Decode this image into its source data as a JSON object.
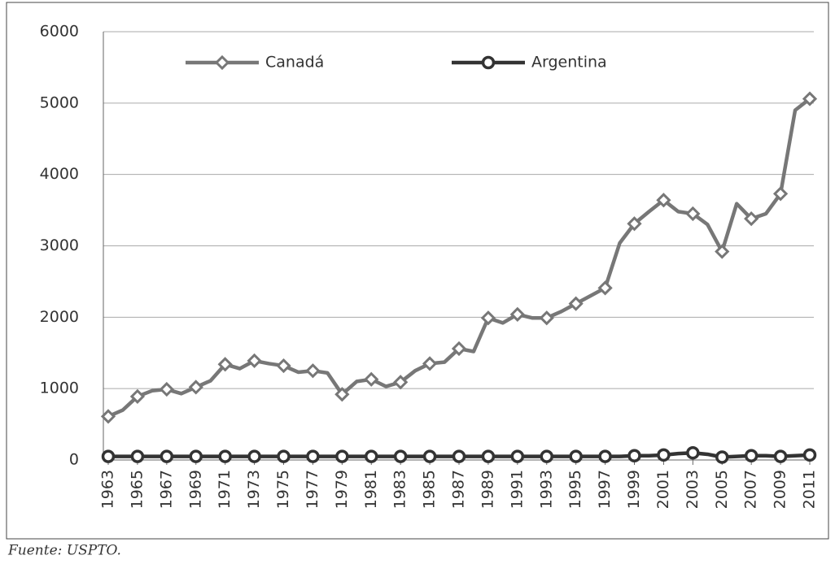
{
  "chart_data": {
    "type": "line",
    "x": [
      1963,
      1964,
      1965,
      1966,
      1967,
      1968,
      1969,
      1970,
      1971,
      1972,
      1973,
      1974,
      1975,
      1976,
      1977,
      1978,
      1979,
      1980,
      1981,
      1982,
      1983,
      1984,
      1985,
      1986,
      1987,
      1988,
      1989,
      1990,
      1991,
      1992,
      1993,
      1994,
      1995,
      1996,
      1997,
      1998,
      1999,
      2000,
      2001,
      2002,
      2003,
      2004,
      2005,
      2006,
      2007,
      2008,
      2009,
      2010,
      2011
    ],
    "series": [
      {
        "name": "Canadá",
        "color": "#777777",
        "marker": "diamond",
        "values": [
          610,
          700,
          890,
          970,
          990,
          930,
          1020,
          1110,
          1340,
          1280,
          1390,
          1350,
          1320,
          1230,
          1250,
          1220,
          920,
          1100,
          1130,
          1030,
          1090,
          1250,
          1350,
          1370,
          1560,
          1520,
          1990,
          1920,
          2040,
          1990,
          1990,
          2080,
          2190,
          2300,
          2410,
          3040,
          3310,
          3480,
          3640,
          3480,
          3450,
          3300,
          2920,
          3590,
          3380,
          3450,
          3730,
          4900,
          5060
        ]
      },
      {
        "name": "Argentina",
        "color": "#333333",
        "marker": "circle",
        "values": [
          50,
          50,
          50,
          50,
          50,
          50,
          50,
          50,
          50,
          50,
          50,
          50,
          50,
          50,
          50,
          50,
          50,
          50,
          50,
          50,
          50,
          50,
          50,
          50,
          50,
          50,
          50,
          50,
          50,
          50,
          50,
          50,
          50,
          50,
          50,
          50,
          60,
          60,
          70,
          90,
          100,
          80,
          40,
          50,
          60,
          60,
          50,
          60,
          70
        ]
      }
    ],
    "xlim": [
      1963,
      2011
    ],
    "xticks": [
      1963,
      1965,
      1967,
      1969,
      1971,
      1973,
      1975,
      1977,
      1979,
      1981,
      1983,
      1985,
      1987,
      1989,
      1991,
      1993,
      1995,
      1997,
      1999,
      2001,
      2003,
      2005,
      2007,
      2009,
      2011
    ],
    "ylim": [
      0,
      6000
    ],
    "yticks": [
      0,
      1000,
      2000,
      3000,
      4000,
      5000,
      6000
    ],
    "grid": true,
    "legend": "top",
    "source": "Fuente: USPTO."
  }
}
